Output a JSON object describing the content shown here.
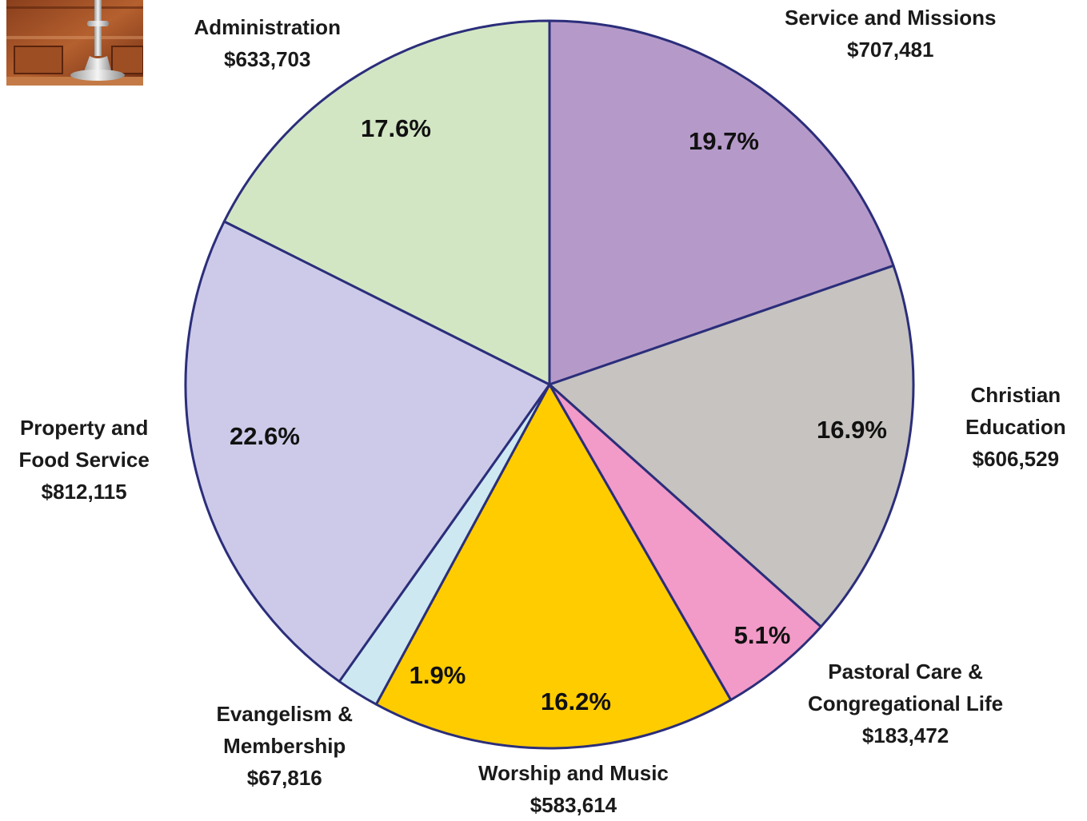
{
  "chart_data": {
    "type": "pie",
    "title": "",
    "series": [
      {
        "values": [
          {
            "category_lines": [
              "Service and Missions"
            ],
            "amount": "$707,481",
            "percent_label": "19.7%",
            "percent": 19.7,
            "color": "#B59AC9"
          },
          {
            "category_lines": [
              "Christian",
              "Education"
            ],
            "amount": "$606,529",
            "percent_label": "16.9%",
            "percent": 16.9,
            "color": "#C6C3C0"
          },
          {
            "category_lines": [
              "Pastoral Care &",
              "Congregational Life"
            ],
            "amount": "$183,472",
            "percent_label": "5.1%",
            "percent": 5.1,
            "color": "#F29AC8"
          },
          {
            "category_lines": [
              "Worship and Music"
            ],
            "amount": "$583,614",
            "percent_label": "16.2%",
            "percent": 16.2,
            "color": "#FFCC00"
          },
          {
            "category_lines": [
              "Evangelism &",
              "Membership"
            ],
            "amount": "$67,816",
            "percent_label": "1.9%",
            "percent": 1.9,
            "color": "#CDE8F0"
          },
          {
            "category_lines": [
              "Property and",
              "Food Service"
            ],
            "amount": "$812,115",
            "percent_label": "22.6%",
            "percent": 22.6,
            "color": "#CCCAE8"
          },
          {
            "category_lines": [
              "Administration"
            ],
            "amount": "$633,703",
            "percent_label": "17.6%",
            "percent": 17.6,
            "color": "#D3E6C4"
          }
        ]
      }
    ],
    "start_angle": "12 o'clock",
    "direction": "clockwise",
    "outline_color": "#2B2E7A"
  }
}
